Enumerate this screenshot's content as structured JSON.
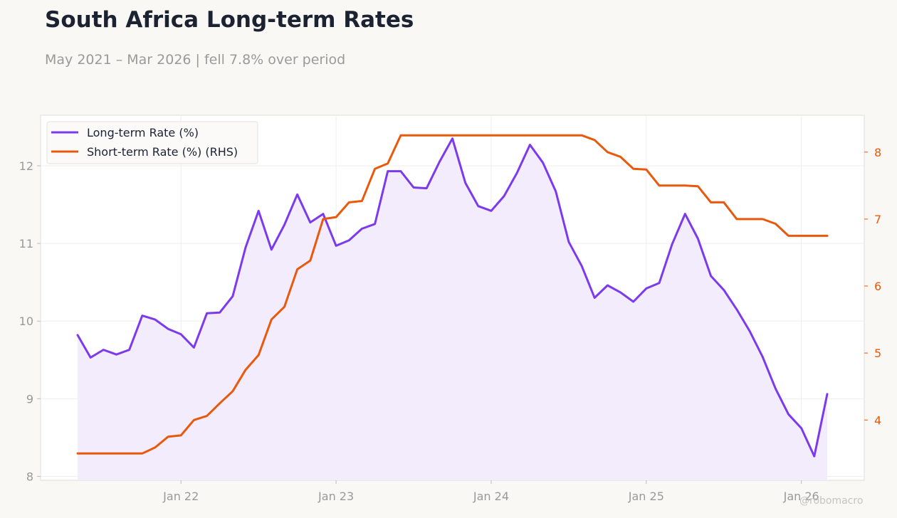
{
  "header": {
    "title": "South Africa Long-term Rates",
    "subtitle": "May 2021 – Mar 2026 | fell 7.8% over period"
  },
  "watermark": "@robomacro",
  "colors": {
    "long_term": "#7c3aed",
    "long_term_fill": "#f2ecfd",
    "short_term": "#e8590c",
    "left_axis_text": "#999999",
    "grid": "#eeeeee"
  },
  "chart_data": {
    "type": "line",
    "x_start": "2021-05",
    "x_end": "2026-03",
    "x_ticks": [
      {
        "label": "Jan 22",
        "date": "2022-01"
      },
      {
        "label": "Jan 23",
        "date": "2023-01"
      },
      {
        "label": "Jan 24",
        "date": "2024-01"
      },
      {
        "label": "Jan 25",
        "date": "2025-01"
      },
      {
        "label": "Jan 26",
        "date": "2026-01"
      }
    ],
    "y_left": {
      "lim": [
        7.95,
        12.65
      ],
      "ticks": [
        8,
        9,
        10,
        11,
        12
      ]
    },
    "y_right": {
      "lim": [
        3.1,
        8.55
      ],
      "ticks": [
        4,
        5,
        6,
        7,
        8
      ]
    },
    "grid": true,
    "legend": "top-left",
    "series": [
      {
        "name": "Long-term Rate (%)",
        "axis": "left",
        "fill": true,
        "values": [
          9.82,
          9.53,
          9.63,
          9.57,
          9.63,
          10.07,
          10.02,
          9.9,
          9.83,
          9.66,
          10.1,
          10.11,
          10.32,
          10.95,
          11.42,
          10.92,
          11.24,
          11.63,
          11.27,
          11.38,
          10.97,
          11.04,
          11.19,
          11.25,
          11.93,
          11.93,
          11.72,
          11.71,
          12.05,
          12.35,
          11.78,
          11.48,
          11.42,
          11.61,
          11.91,
          12.27,
          12.04,
          11.67,
          11.02,
          10.71,
          10.3,
          10.46,
          10.37,
          10.25,
          10.42,
          10.49,
          10.99,
          11.38,
          11.06,
          10.58,
          10.4,
          10.15,
          9.87,
          9.54,
          9.13,
          8.8,
          8.62,
          8.26,
          9.06
        ]
      },
      {
        "name": "Short-term Rate (%) (RHS)",
        "axis": "right",
        "fill": false,
        "values": [
          3.5,
          3.5,
          3.5,
          3.5,
          3.5,
          3.5,
          3.59,
          3.75,
          3.77,
          4.0,
          4.06,
          4.25,
          4.43,
          4.75,
          4.97,
          5.5,
          5.69,
          6.25,
          6.38,
          7.0,
          7.03,
          7.25,
          7.27,
          7.75,
          7.83,
          8.25,
          8.25,
          8.25,
          8.25,
          8.25,
          8.25,
          8.25,
          8.25,
          8.25,
          8.25,
          8.25,
          8.25,
          8.25,
          8.25,
          8.25,
          8.18,
          8.0,
          7.93,
          7.75,
          7.74,
          7.5,
          7.5,
          7.5,
          7.49,
          7.25,
          7.25,
          7.0,
          7.0,
          7.0,
          6.93,
          6.75,
          6.75,
          6.75,
          6.75
        ]
      }
    ]
  }
}
